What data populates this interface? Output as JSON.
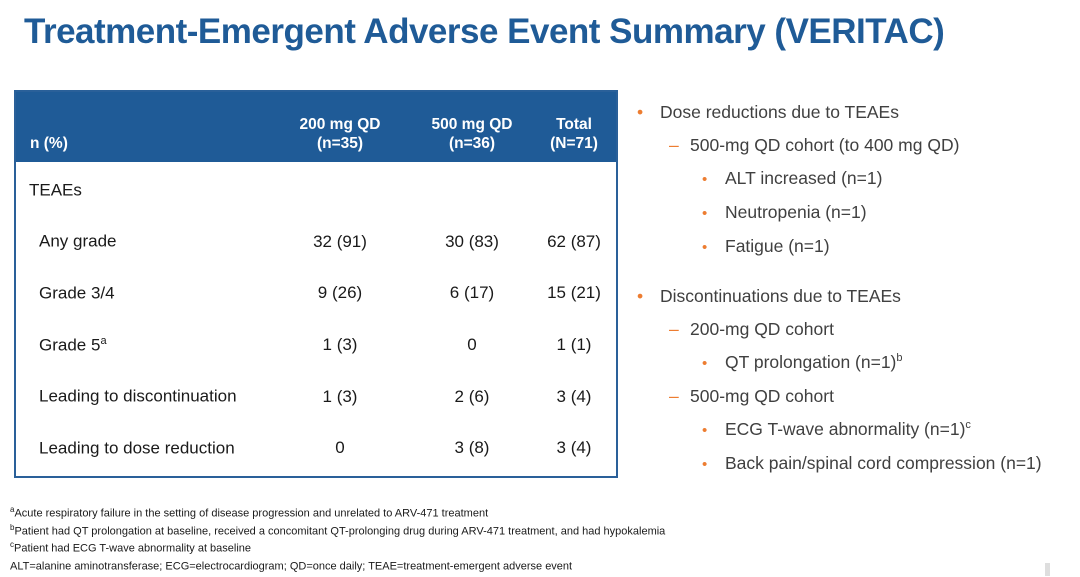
{
  "title": "Treatment-Emergent Adverse Event Summary (VERITAC)",
  "table": {
    "header": {
      "row_label": "n (%)",
      "columns": [
        {
          "line1": "200 mg QD",
          "line2": "(n=35)"
        },
        {
          "line1": "500 mg QD",
          "line2": "(n=36)"
        },
        {
          "line1": "Total",
          "line2": "(N=71)"
        }
      ]
    },
    "rows": [
      {
        "label": "TEAEs",
        "sup": "",
        "values": [
          "",
          "",
          ""
        ]
      },
      {
        "label": "Any grade",
        "sup": "",
        "values": [
          "32 (91)",
          "30 (83)",
          "62 (87)"
        ]
      },
      {
        "label": "Grade 3/4",
        "sup": "",
        "values": [
          "9 (26)",
          "6 (17)",
          "15 (21)"
        ]
      },
      {
        "label": "Grade 5",
        "sup": "a",
        "values": [
          "1 (3)",
          "0",
          "1 (1)"
        ]
      },
      {
        "label": "Leading to discontinuation",
        "sup": "",
        "values": [
          "1 (3)",
          "2 (6)",
          "3 (4)"
        ]
      },
      {
        "label": "Leading to dose reduction",
        "sup": "",
        "values": [
          "0",
          "3 (8)",
          "3 (4)"
        ]
      }
    ]
  },
  "bullets": {
    "items": [
      {
        "level": 1,
        "text": "Dose reductions due to TEAEs",
        "sup": ""
      },
      {
        "level": 2,
        "text": "500-mg QD cohort (to 400 mg QD)",
        "sup": ""
      },
      {
        "level": 3,
        "text": "ALT increased (n=1)",
        "sup": ""
      },
      {
        "level": 3,
        "text": "Neutropenia (n=1)",
        "sup": ""
      },
      {
        "level": 3,
        "text": "Fatigue (n=1)",
        "sup": ""
      },
      {
        "level": 1,
        "text": "Discontinuations due to TEAEs",
        "sup": ""
      },
      {
        "level": 2,
        "text": "200-mg QD cohort",
        "sup": ""
      },
      {
        "level": 3,
        "text": "QT prolongation (n=1)",
        "sup": "b"
      },
      {
        "level": 2,
        "text": "500-mg QD cohort",
        "sup": ""
      },
      {
        "level": 3,
        "text": "ECG T-wave abnormality (n=1)",
        "sup": "c"
      },
      {
        "level": 3,
        "text": "Back pain/spinal cord compression (n=1)",
        "sup": ""
      }
    ]
  },
  "footnotes": [
    {
      "sup": "a",
      "text": "Acute respiratory failure in the setting of disease progression and unrelated to ARV-471 treatment"
    },
    {
      "sup": "b",
      "text": "Patient had QT prolongation at baseline, received a concomitant QT-prolonging drug during ARV-471 treatment, and had hypokalemia"
    },
    {
      "sup": "c",
      "text": "Patient had ECG T-wave abnormality at baseline"
    },
    {
      "sup": "",
      "text": "ALT=alanine aminotransferase; ECG=electrocardiogram; QD=once daily; TEAE=treatment-emergent adverse event"
    }
  ],
  "colors": {
    "title_blue": "#1F5B97",
    "header_blue": "#1F5B97",
    "border_blue": "#2A6099",
    "accent_orange": "#ED7D31",
    "body_text": "#1A1A1A",
    "bullet_text": "#404040"
  }
}
